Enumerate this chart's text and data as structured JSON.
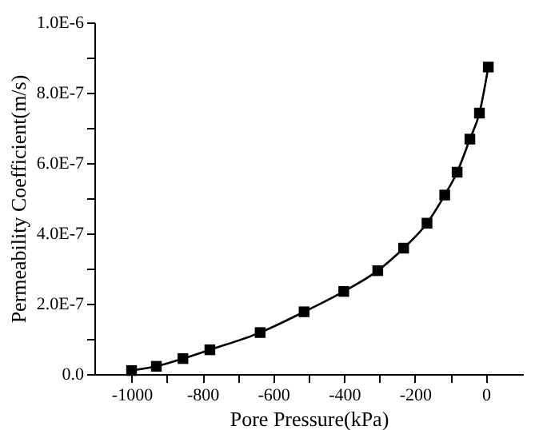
{
  "chart_data": {
    "type": "line",
    "xlabel": "Pore Pressure(kPa)",
    "ylabel": "Permeability Coefficient(m/s)",
    "x": [
      -1000,
      -930,
      -855,
      -779,
      -637,
      -513,
      -401,
      -305,
      -232,
      -166,
      -116,
      -81,
      -45,
      -18,
      7
    ],
    "series": [
      {
        "color": "#000000",
        "values": [
          1e-08,
          2.2e-08,
          4.4e-08,
          6.9e-08,
          1.18e-07,
          1.77e-07,
          2.35e-07,
          2.94e-07,
          3.58e-07,
          4.29e-07,
          5.09e-07,
          5.74e-07,
          6.68e-07,
          7.42e-07,
          8.73e-07
        ]
      }
    ],
    "xlim": [
      -1105,
      105
    ],
    "xticks": [
      -1000,
      {
        "value": -900,
        "label": null
      },
      -800,
      {
        "value": -700,
        "label": null
      },
      -600,
      {
        "value": -500,
        "label": null
      },
      -400,
      {
        "value": -300,
        "label": null
      },
      -200,
      {
        "value": -100,
        "label": null
      },
      0
    ],
    "ylim": [
      0,
      1e-06
    ],
    "yticks": [
      {
        "value": 0,
        "label": "0.0"
      },
      {
        "value": 1e-07,
        "label": null
      },
      {
        "value": 2e-07,
        "label": "2.0E-7"
      },
      {
        "value": 3e-07,
        "label": null
      },
      {
        "value": 4e-07,
        "label": "4.0E-7"
      },
      {
        "value": 5e-07,
        "label": null
      },
      {
        "value": 6e-07,
        "label": "6.0E-7"
      },
      {
        "value": 7e-07,
        "label": null
      },
      {
        "value": 8e-07,
        "label": "8.0E-7"
      },
      {
        "value": 9e-07,
        "label": null
      },
      {
        "value": 1e-06,
        "label": "1.0E-6"
      }
    ],
    "marker": "square",
    "line_style": "solid",
    "grid": false
  }
}
